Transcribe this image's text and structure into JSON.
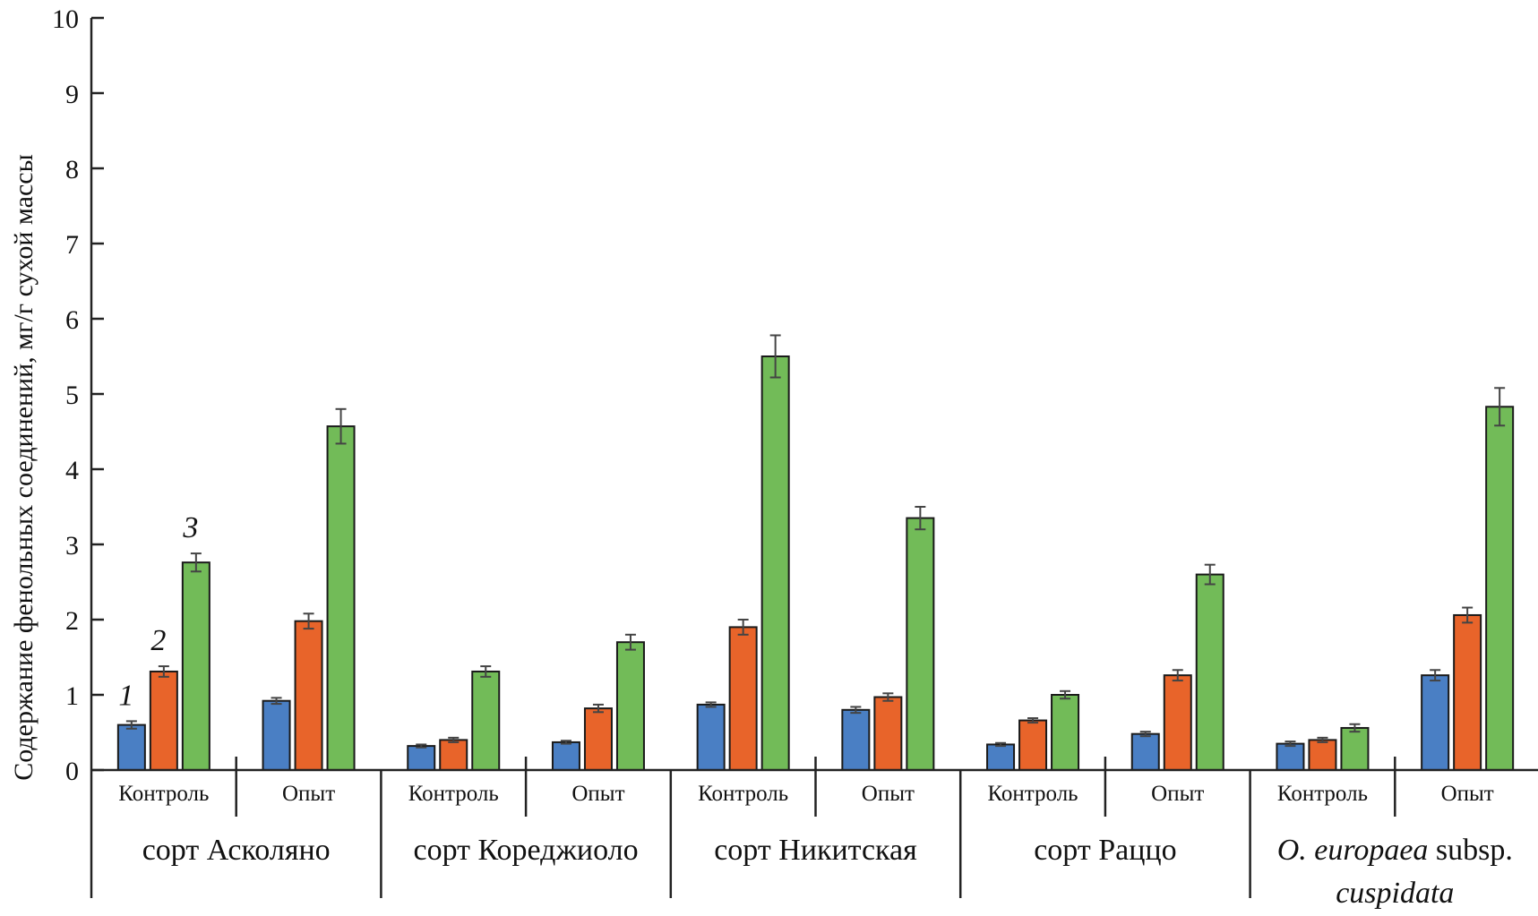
{
  "chart_data": {
    "type": "bar",
    "ylabel": "Содержание фенольных соединений, мг/г сухой массы",
    "ylim": [
      0,
      10
    ],
    "yticks": [
      "0",
      "1",
      "2",
      "3",
      "4",
      "5",
      "6",
      "7",
      "8",
      "9",
      "10"
    ],
    "grid": false,
    "groups": [
      {
        "label": "сорт Асколяно",
        "conditions": [
          "Контроль",
          "Опыт"
        ]
      },
      {
        "label": "сорт Кореджиоло",
        "conditions": [
          "Контроль",
          "Опыт"
        ]
      },
      {
        "label": "сорт Никитская",
        "conditions": [
          "Контроль",
          "Опыт"
        ]
      },
      {
        "label": "сорт Раццо",
        "conditions": [
          "Контроль",
          "Опыт"
        ]
      },
      {
        "label_italic": "O. europaea",
        "label_plain": " subsp.",
        "label_line2": "cuspidata",
        "conditions": [
          "Контроль",
          "Опыт"
        ]
      }
    ],
    "categories": [
      "сорт Асколяно – Контроль",
      "сорт Асколяно – Опыт",
      "сорт Кореджиоло – Контроль",
      "сорт Кореджиоло – Опыт",
      "сорт Никитская – Контроль",
      "сорт Никитская – Опыт",
      "сорт Раццо – Контроль",
      "сорт Раццо – Опыт",
      "O. europaea subsp. cuspidata – Контроль",
      "O. europaea subsp. cuspidata – Опыт"
    ],
    "series": [
      {
        "label": "1",
        "color": "#4a7fc4",
        "values": [
          0.6,
          0.92,
          0.32,
          0.37,
          0.87,
          0.8,
          0.34,
          0.48,
          0.35,
          1.26
        ],
        "errors": [
          0.05,
          0.04,
          0.02,
          0.02,
          0.03,
          0.04,
          0.02,
          0.03,
          0.03,
          0.07
        ]
      },
      {
        "label": "2",
        "color": "#e8642a",
        "values": [
          1.31,
          1.98,
          0.4,
          0.82,
          1.9,
          0.97,
          0.66,
          1.26,
          0.4,
          2.06
        ],
        "errors": [
          0.07,
          0.1,
          0.03,
          0.05,
          0.1,
          0.05,
          0.03,
          0.07,
          0.03,
          0.1
        ]
      },
      {
        "label": "3",
        "color": "#72bb58",
        "values": [
          2.76,
          4.57,
          1.31,
          1.7,
          5.5,
          3.35,
          1.0,
          2.6,
          0.56,
          4.83
        ],
        "errors": [
          0.12,
          0.23,
          0.07,
          0.1,
          0.28,
          0.15,
          0.05,
          0.13,
          0.05,
          0.25
        ]
      }
    ]
  }
}
